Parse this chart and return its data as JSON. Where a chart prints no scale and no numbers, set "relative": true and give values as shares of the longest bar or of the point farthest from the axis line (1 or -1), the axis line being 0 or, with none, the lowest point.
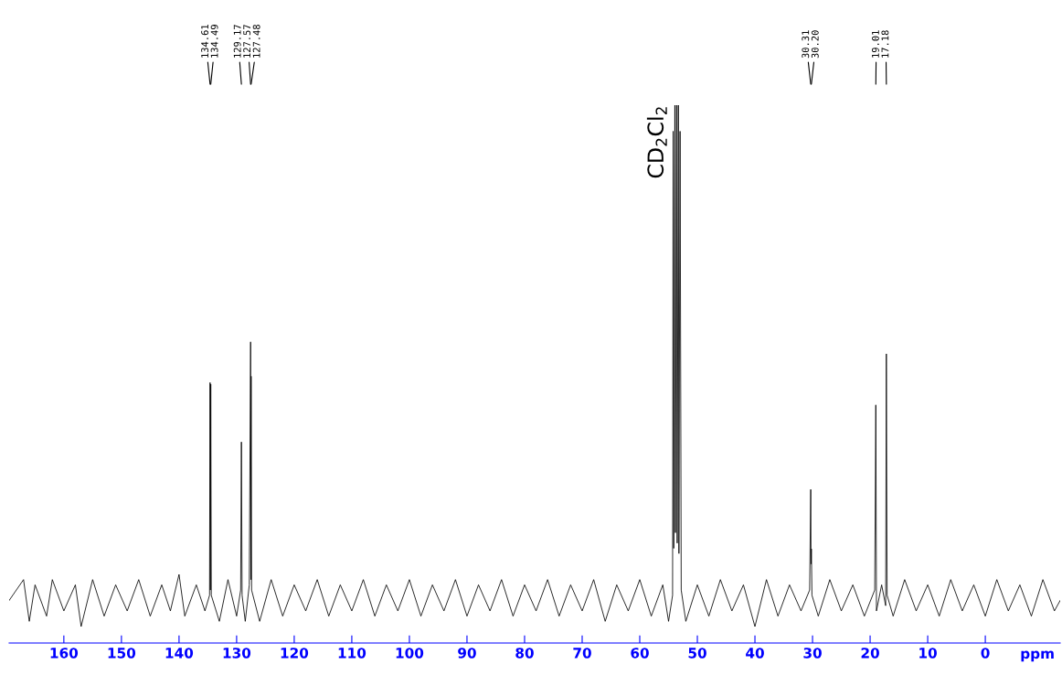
{
  "chart_data": {
    "type": "line",
    "relative": true,
    "xlabel": "ppm",
    "grid": false,
    "marker": "none",
    "line_style": "solid",
    "tick_labels": "x",
    "xlim": [
      169.5,
      -13
    ],
    "xticks": [
      160,
      150,
      140,
      130,
      120,
      110,
      100,
      90,
      80,
      70,
      60,
      50,
      40,
      30,
      20,
      10,
      0
    ],
    "series": [
      {
        "color": "#000000",
        "x": [
          169.5,
          167,
          166,
          165,
          163,
          162,
          160,
          158,
          157,
          155,
          153,
          151,
          149,
          147,
          145,
          143,
          141.5,
          140,
          139,
          137,
          135.5,
          134.7,
          134.61,
          134.55,
          134.49,
          134.4,
          133,
          131.5,
          130,
          129.3,
          129.17,
          129.05,
          128.5,
          127.8,
          127.57,
          127.52,
          127.48,
          127.4,
          126,
          124,
          122,
          120,
          118,
          116,
          114,
          112,
          110,
          108,
          106,
          104,
          102,
          100,
          98,
          96,
          94,
          92,
          90,
          88,
          86,
          84,
          82,
          80,
          78,
          76,
          74,
          72,
          70,
          68,
          66,
          64,
          62,
          60,
          58,
          56,
          55,
          54.3,
          54.2,
          54.1,
          53.9,
          53.8,
          53.6,
          53.5,
          53.3,
          53.2,
          53.0,
          52.8,
          52,
          50,
          48,
          46,
          44,
          42,
          40,
          38,
          36,
          34,
          32,
          30.5,
          30.31,
          30.25,
          30.2,
          30.1,
          29,
          27,
          25,
          23,
          21,
          19.2,
          19.01,
          18.9,
          18,
          17.3,
          17.18,
          17.05,
          16,
          14,
          12,
          10,
          8,
          6,
          4,
          2,
          0,
          -2,
          -4,
          -6,
          -8,
          -10,
          -12,
          -13
        ],
        "values": [
          0.05,
          0.09,
          0.01,
          0.08,
          0.02,
          0.09,
          0.03,
          0.08,
          0.0,
          0.09,
          0.02,
          0.08,
          0.03,
          0.09,
          0.02,
          0.08,
          0.03,
          0.1,
          0.02,
          0.08,
          0.03,
          0.06,
          0.468,
          0.07,
          0.465,
          0.06,
          0.01,
          0.09,
          0.02,
          0.07,
          0.354,
          0.06,
          0.01,
          0.08,
          0.546,
          0.09,
          0.48,
          0.07,
          0.01,
          0.09,
          0.02,
          0.08,
          0.03,
          0.09,
          0.02,
          0.08,
          0.03,
          0.09,
          0.02,
          0.08,
          0.03,
          0.09,
          0.02,
          0.08,
          0.03,
          0.09,
          0.02,
          0.08,
          0.03,
          0.09,
          0.02,
          0.08,
          0.03,
          0.09,
          0.02,
          0.08,
          0.03,
          0.09,
          0.01,
          0.08,
          0.03,
          0.09,
          0.02,
          0.08,
          0.01,
          0.06,
          0.95,
          0.15,
          1,
          0.18,
          1,
          0.16,
          1,
          0.14,
          0.95,
          0.07,
          0.01,
          0.08,
          0.02,
          0.09,
          0.03,
          0.08,
          0.0,
          0.09,
          0.02,
          0.08,
          0.03,
          0.07,
          0.263,
          0.12,
          0.149,
          0.06,
          0.02,
          0.09,
          0.03,
          0.08,
          0.02,
          0.07,
          0.425,
          0.03,
          0.08,
          0.04,
          0.523,
          0.06,
          0.02,
          0.09,
          0.03,
          0.08,
          0.02,
          0.09,
          0.03,
          0.08,
          0.02,
          0.09,
          0.03,
          0.08,
          0.02,
          0.09,
          0.03,
          0.05
        ]
      }
    ],
    "annotations": [
      {
        "text": "134.61",
        "x": 134.61
      },
      {
        "text": "134.49",
        "x": 134.49
      },
      {
        "text": "129.17",
        "x": 129.17
      },
      {
        "text": "127.57",
        "x": 127.57
      },
      {
        "text": "127.48",
        "x": 127.48
      },
      {
        "text": "CD$_{2}$Cl$_{2}$",
        "x": 53.8,
        "y": 1
      },
      {
        "text": "30.31",
        "x": 30.31
      },
      {
        "text": "30.20",
        "x": 30.2
      },
      {
        "text": "19.01",
        "x": 19.01
      },
      {
        "text": "17.18",
        "x": 17.18
      }
    ]
  }
}
